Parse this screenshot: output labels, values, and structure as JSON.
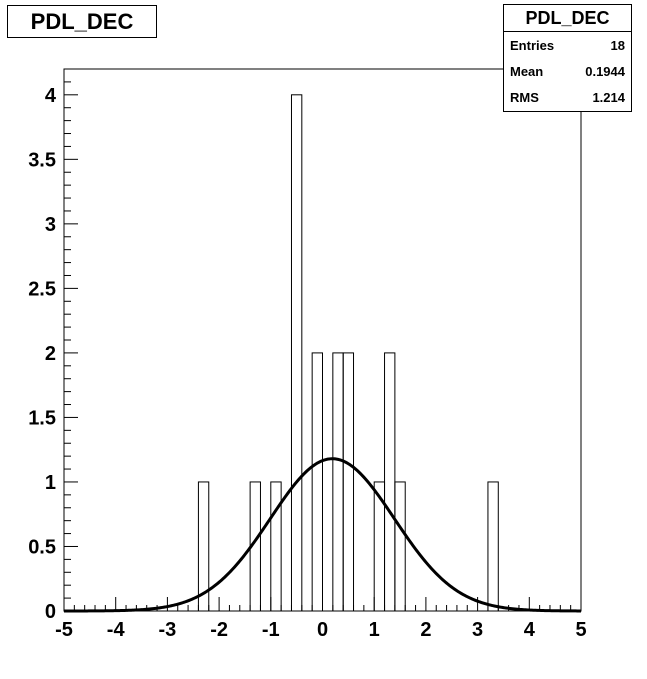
{
  "title": "PDL_DEC",
  "stats": {
    "name": "PDL_DEC",
    "rows": [
      {
        "label": "Entries",
        "value": "18"
      },
      {
        "label": "Mean",
        "value": "0.1944"
      },
      {
        "label": "RMS",
        "value": "1.214"
      }
    ]
  },
  "chart_data": {
    "type": "bar",
    "title": "PDL_DEC",
    "xlabel": "",
    "ylabel": "",
    "xlim": [
      -5,
      5
    ],
    "ylim": [
      0,
      4.2
    ],
    "bin_width": 0.2,
    "x_ticks": [
      "-5",
      "-4",
      "-3",
      "-2",
      "-1",
      "0",
      "1",
      "2",
      "3",
      "4",
      "5"
    ],
    "y_ticks": [
      "0",
      "0.5",
      "1",
      "1.5",
      "2",
      "2.5",
      "3",
      "3.5",
      "4"
    ],
    "bins": [
      {
        "x0": -2.4,
        "x1": -2.2,
        "count": 1
      },
      {
        "x0": -1.4,
        "x1": -1.2,
        "count": 1
      },
      {
        "x0": -1.0,
        "x1": -0.8,
        "count": 1
      },
      {
        "x0": -0.6,
        "x1": -0.4,
        "count": 4
      },
      {
        "x0": -0.2,
        "x1": 0.0,
        "count": 2
      },
      {
        "x0": 0.2,
        "x1": 0.4,
        "count": 2
      },
      {
        "x0": 0.4,
        "x1": 0.6,
        "count": 2
      },
      {
        "x0": 1.0,
        "x1": 1.2,
        "count": 1
      },
      {
        "x0": 1.2,
        "x1": 1.4,
        "count": 2
      },
      {
        "x0": 1.4,
        "x1": 1.6,
        "count": 1
      },
      {
        "x0": 3.2,
        "x1": 3.4,
        "count": 1
      }
    ],
    "fit": {
      "type": "gaussian",
      "mean": 0.19,
      "sigma": 1.2,
      "amplitude": 1.18
    }
  }
}
